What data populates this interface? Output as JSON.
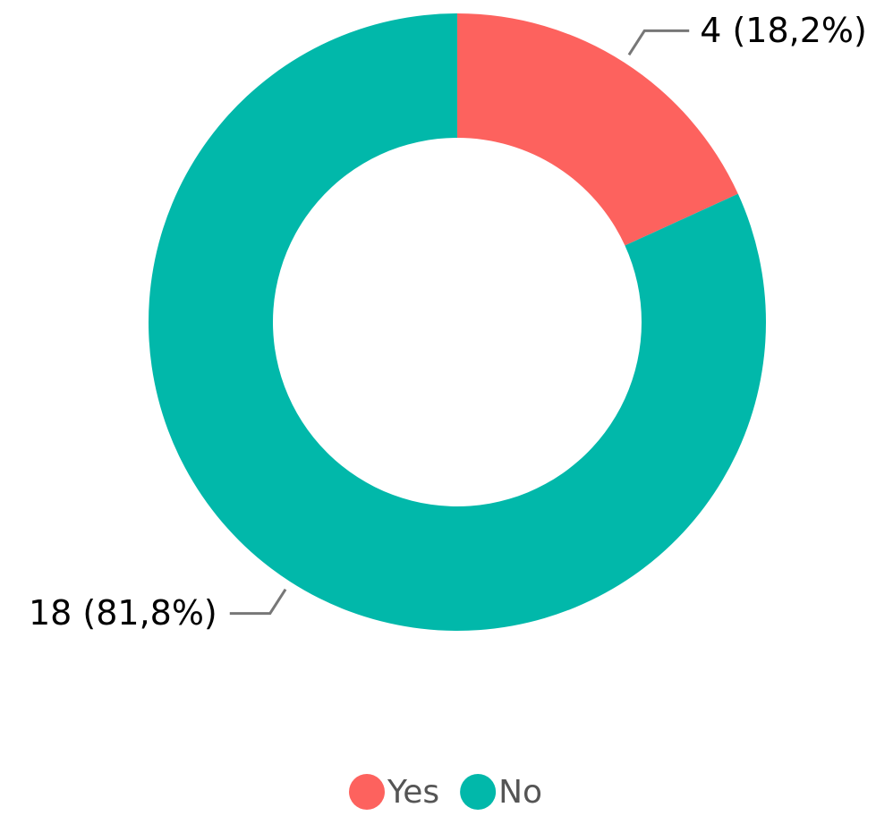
{
  "chart_data": {
    "type": "donut",
    "categories": [
      "Yes",
      "No"
    ],
    "values": [
      4,
      18
    ],
    "value_labels": [
      "4 (18,2%)",
      "18 (81,8%)"
    ],
    "colors": [
      "#fd625e",
      "#01b8aa"
    ],
    "legend": "bottom"
  }
}
